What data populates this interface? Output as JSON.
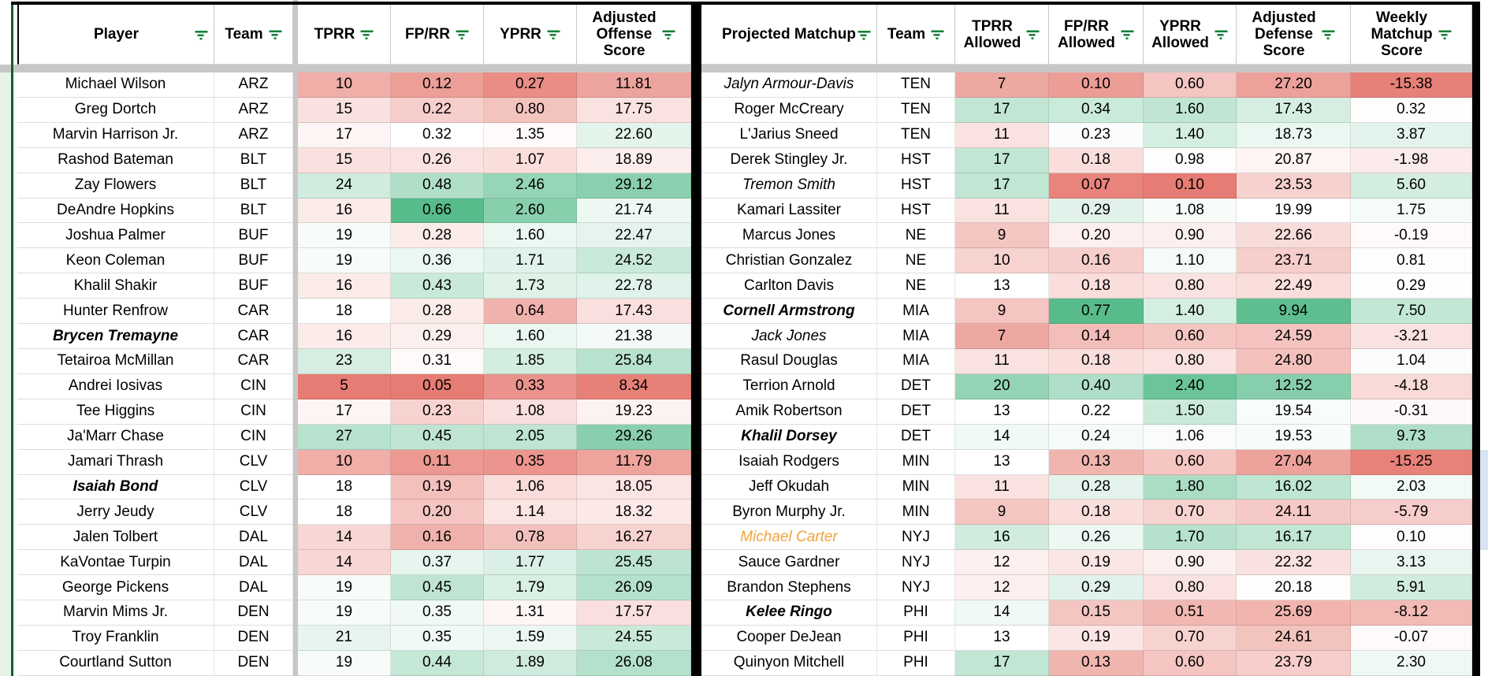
{
  "colors": {
    "scale_red": "#e67c73",
    "scale_green": "#57bb8a",
    "scale_neutral": "#ffffff",
    "filter_icon": "#188038",
    "frozen_bar": "#c7c7c7",
    "sheet_outline_green": "#145c2e",
    "table_border_black": "#000000",
    "player_orange": "#f2a33c",
    "left_edge_tint": "#e7f2e9",
    "right_edge_tint": "#d8e4f2"
  },
  "left_table": {
    "headers": [
      "Player",
      "Team",
      "TPRR",
      "FP/RR",
      "YPRR",
      "Adjusted\nOffense\nScore"
    ],
    "scales": [
      {
        "min": 5,
        "mid": 18,
        "max": 39
      },
      {
        "min": 0.05,
        "mid": 0.32,
        "max": 0.66
      },
      {
        "min": 0.1,
        "mid": 1.4,
        "max": 3.1
      },
      {
        "min": 8,
        "mid": 20.5,
        "max": 33
      }
    ],
    "rows": [
      {
        "player": "Michael Wilson",
        "style": "normal",
        "team": "ARZ",
        "values": [
          "10",
          "0.12",
          "0.27",
          "11.81"
        ]
      },
      {
        "player": "Greg Dortch",
        "style": "normal",
        "team": "ARZ",
        "values": [
          "15",
          "0.22",
          "0.80",
          "17.75"
        ]
      },
      {
        "player": "Marvin Harrison Jr.",
        "style": "normal",
        "team": "ARZ",
        "values": [
          "17",
          "0.32",
          "1.35",
          "22.60"
        ]
      },
      {
        "player": "Rashod Bateman",
        "style": "normal",
        "team": "BLT",
        "values": [
          "15",
          "0.26",
          "1.07",
          "18.89"
        ]
      },
      {
        "player": "Zay Flowers",
        "style": "normal",
        "team": "BLT",
        "values": [
          "24",
          "0.48",
          "2.46",
          "29.12"
        ]
      },
      {
        "player": "DeAndre Hopkins",
        "style": "normal",
        "team": "BLT",
        "values": [
          "16",
          "0.66",
          "2.60",
          "21.74"
        ]
      },
      {
        "player": "Joshua Palmer",
        "style": "normal",
        "team": "BUF",
        "values": [
          "19",
          "0.28",
          "1.60",
          "22.47"
        ]
      },
      {
        "player": "Keon Coleman",
        "style": "normal",
        "team": "BUF",
        "values": [
          "19",
          "0.36",
          "1.71",
          "24.52"
        ]
      },
      {
        "player": "Khalil Shakir",
        "style": "normal",
        "team": "BUF",
        "values": [
          "16",
          "0.43",
          "1.73",
          "22.78"
        ]
      },
      {
        "player": "Hunter Renfrow",
        "style": "normal",
        "team": "CAR",
        "values": [
          "18",
          "0.28",
          "0.64",
          "17.43"
        ]
      },
      {
        "player": "Brycen Tremayne",
        "style": "bold-italic",
        "team": "CAR",
        "values": [
          "16",
          "0.29",
          "1.60",
          "21.38"
        ]
      },
      {
        "player": "Tetairoa McMillan",
        "style": "normal",
        "team": "CAR",
        "values": [
          "23",
          "0.31",
          "1.85",
          "25.84"
        ]
      },
      {
        "player": "Andrei Iosivas",
        "style": "normal",
        "team": "CIN",
        "values": [
          "5",
          "0.05",
          "0.33",
          "8.34"
        ]
      },
      {
        "player": "Tee Higgins",
        "style": "normal",
        "team": "CIN",
        "values": [
          "17",
          "0.23",
          "1.08",
          "19.23"
        ]
      },
      {
        "player": "Ja'Marr Chase",
        "style": "normal",
        "team": "CIN",
        "values": [
          "27",
          "0.45",
          "2.05",
          "29.26"
        ]
      },
      {
        "player": "Jamari Thrash",
        "style": "normal",
        "team": "CLV",
        "values": [
          "10",
          "0.11",
          "0.35",
          "11.79"
        ]
      },
      {
        "player": "Isaiah Bond",
        "style": "bold-italic",
        "team": "CLV",
        "values": [
          "18",
          "0.19",
          "1.06",
          "18.05"
        ]
      },
      {
        "player": "Jerry Jeudy",
        "style": "normal",
        "team": "CLV",
        "values": [
          "18",
          "0.20",
          "1.14",
          "18.32"
        ]
      },
      {
        "player": "Jalen Tolbert",
        "style": "normal",
        "team": "DAL",
        "values": [
          "14",
          "0.16",
          "0.78",
          "16.27"
        ]
      },
      {
        "player": "KaVontae Turpin",
        "style": "normal",
        "team": "DAL",
        "values": [
          "14",
          "0.37",
          "1.77",
          "25.45"
        ]
      },
      {
        "player": "George Pickens",
        "style": "normal",
        "team": "DAL",
        "values": [
          "19",
          "0.45",
          "1.79",
          "26.09"
        ]
      },
      {
        "player": "Marvin Mims Jr.",
        "style": "normal",
        "team": "DEN",
        "values": [
          "19",
          "0.35",
          "1.31",
          "17.57"
        ]
      },
      {
        "player": "Troy Franklin",
        "style": "normal",
        "team": "DEN",
        "values": [
          "21",
          "0.35",
          "1.59",
          "24.55"
        ]
      },
      {
        "player": "Courtland Sutton",
        "style": "normal",
        "team": "DEN",
        "values": [
          "19",
          "0.44",
          "1.89",
          "26.08"
        ]
      }
    ]
  },
  "right_table": {
    "headers": [
      "Projected Matchup",
      "Team",
      "TPRR\nAllowed",
      "FP/RR\nAllowed",
      "YPRR\nAllowed",
      "Adjusted\nDefense\nScore",
      "Weekly\nMatchup\nScore"
    ],
    "scales": [
      {
        "min": 4,
        "mid": 13,
        "max": 24
      },
      {
        "min": 0.06,
        "mid": 0.22,
        "max": 0.6
      },
      {
        "min": 0.1,
        "mid": 1.0,
        "max": 2.6
      },
      {
        "min": 9.5,
        "mid": 20,
        "max": 30,
        "invert": true
      },
      {
        "min": -16,
        "mid": 0.5,
        "max": 20
      }
    ],
    "edge_highlight_rows": [
      16,
      17,
      18,
      19
    ],
    "rows": [
      {
        "player": "Jalyn Armour-Davis",
        "style": "italic",
        "team": "TEN",
        "values": [
          "7",
          "0.10",
          "0.60",
          "27.20",
          "-15.38"
        ]
      },
      {
        "player": "Roger McCreary",
        "style": "normal",
        "team": "TEN",
        "values": [
          "17",
          "0.34",
          "1.60",
          "17.43",
          "0.32"
        ]
      },
      {
        "player": "L'Jarius Sneed",
        "style": "normal",
        "team": "TEN",
        "values": [
          "11",
          "0.23",
          "1.40",
          "18.73",
          "3.87"
        ]
      },
      {
        "player": "Derek Stingley Jr.",
        "style": "normal",
        "team": "HST",
        "values": [
          "17",
          "0.18",
          "0.98",
          "20.87",
          "-1.98"
        ]
      },
      {
        "player": "Tremon Smith",
        "style": "italic",
        "team": "HST",
        "values": [
          "17",
          "0.07",
          "0.10",
          "23.53",
          "5.60"
        ]
      },
      {
        "player": "Kamari Lassiter",
        "style": "normal",
        "team": "HST",
        "values": [
          "11",
          "0.29",
          "1.08",
          "19.99",
          "1.75"
        ]
      },
      {
        "player": "Marcus Jones",
        "style": "normal",
        "team": "NE",
        "values": [
          "9",
          "0.20",
          "0.90",
          "22.66",
          "-0.19"
        ]
      },
      {
        "player": "Christian Gonzalez",
        "style": "normal",
        "team": "NE",
        "values": [
          "10",
          "0.16",
          "1.10",
          "23.71",
          "0.81"
        ]
      },
      {
        "player": "Carlton Davis",
        "style": "normal",
        "team": "NE",
        "values": [
          "13",
          "0.18",
          "0.80",
          "22.49",
          "0.29"
        ]
      },
      {
        "player": "Cornell Armstrong",
        "style": "bold-italic",
        "team": "MIA",
        "values": [
          "9",
          "0.77",
          "1.40",
          "9.94",
          "7.50"
        ]
      },
      {
        "player": "Jack Jones",
        "style": "italic",
        "team": "MIA",
        "values": [
          "7",
          "0.14",
          "0.60",
          "24.59",
          "-3.21"
        ]
      },
      {
        "player": "Rasul Douglas",
        "style": "normal",
        "team": "MIA",
        "values": [
          "11",
          "0.18",
          "0.80",
          "24.80",
          "1.04"
        ]
      },
      {
        "player": "Terrion Arnold",
        "style": "normal",
        "team": "DET",
        "values": [
          "20",
          "0.40",
          "2.40",
          "12.52",
          "-4.18"
        ]
      },
      {
        "player": "Amik Robertson",
        "style": "normal",
        "team": "DET",
        "values": [
          "13",
          "0.22",
          "1.50",
          "19.54",
          "-0.31"
        ]
      },
      {
        "player": "Khalil Dorsey",
        "style": "bold-italic",
        "team": "DET",
        "values": [
          "14",
          "0.24",
          "1.06",
          "19.53",
          "9.73"
        ]
      },
      {
        "player": "Isaiah Rodgers",
        "style": "normal",
        "team": "MIN",
        "values": [
          "13",
          "0.13",
          "0.60",
          "27.04",
          "-15.25"
        ]
      },
      {
        "player": "Jeff Okudah",
        "style": "normal",
        "team": "MIN",
        "values": [
          "11",
          "0.28",
          "1.80",
          "16.02",
          "2.03"
        ]
      },
      {
        "player": "Byron Murphy Jr.",
        "style": "normal",
        "team": "MIN",
        "values": [
          "9",
          "0.18",
          "0.70",
          "24.11",
          "-5.79"
        ]
      },
      {
        "player": "Michael Carter",
        "style": "orange-italic",
        "team": "NYJ",
        "values": [
          "16",
          "0.26",
          "1.70",
          "16.17",
          "0.10"
        ]
      },
      {
        "player": "Sauce Gardner",
        "style": "normal",
        "team": "NYJ",
        "values": [
          "12",
          "0.19",
          "0.90",
          "22.32",
          "3.13"
        ]
      },
      {
        "player": "Brandon Stephens",
        "style": "normal",
        "team": "NYJ",
        "values": [
          "12",
          "0.29",
          "0.80",
          "20.18",
          "5.91"
        ]
      },
      {
        "player": "Kelee Ringo",
        "style": "bold-italic",
        "team": "PHI",
        "values": [
          "14",
          "0.15",
          "0.51",
          "25.69",
          "-8.12"
        ]
      },
      {
        "player": "Cooper DeJean",
        "style": "normal",
        "team": "PHI",
        "values": [
          "13",
          "0.19",
          "0.70",
          "24.61",
          "-0.07"
        ]
      },
      {
        "player": "Quinyon Mitchell",
        "style": "normal",
        "team": "PHI",
        "values": [
          "17",
          "0.13",
          "0.60",
          "23.79",
          "2.30"
        ]
      }
    ]
  }
}
